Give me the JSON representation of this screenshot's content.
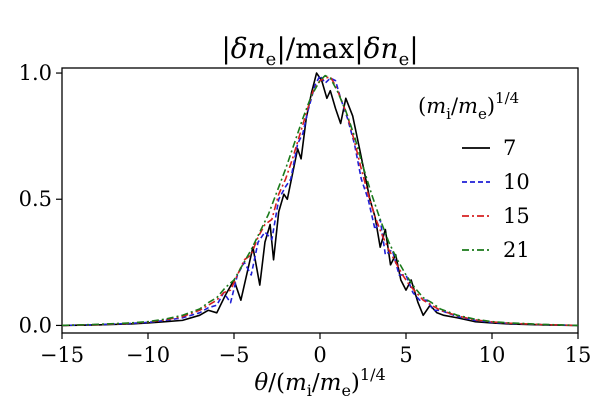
{
  "chart_data": {
    "type": "line",
    "title": "|δn_e|/max|δn_e|",
    "xlabel": "θ/(m_i/m_e)^{1/4}",
    "ylabel": "",
    "xlim": [
      -15,
      15
    ],
    "ylim": [
      -0.03,
      1.02
    ],
    "x_ticks": [
      "−15",
      "−10",
      "−5",
      "0",
      "5",
      "10",
      "15"
    ],
    "y_ticks": [
      "0.0",
      "0.5",
      "1.0"
    ],
    "grid": false,
    "legend": {
      "title": "(m_i/m_e)^{1/4}",
      "placement": "right"
    },
    "series": [
      {
        "name": "7",
        "color": "#000000",
        "dash": "solid",
        "points": [
          [
            -15,
            0.0
          ],
          [
            -13,
            0.002
          ],
          [
            -11,
            0.006
          ],
          [
            -10,
            0.01
          ],
          [
            -9,
            0.015
          ],
          [
            -8,
            0.02
          ],
          [
            -7,
            0.04
          ],
          [
            -6.5,
            0.06
          ],
          [
            -6,
            0.05
          ],
          [
            -5.5,
            0.12
          ],
          [
            -5,
            0.18
          ],
          [
            -4.6,
            0.1
          ],
          [
            -4.2,
            0.22
          ],
          [
            -3.9,
            0.31
          ],
          [
            -3.5,
            0.16
          ],
          [
            -3.2,
            0.33
          ],
          [
            -2.9,
            0.4
          ],
          [
            -2.7,
            0.26
          ],
          [
            -2.4,
            0.45
          ],
          [
            -2.1,
            0.52
          ],
          [
            -1.9,
            0.5
          ],
          [
            -1.6,
            0.6
          ],
          [
            -1.3,
            0.7
          ],
          [
            -1.1,
            0.66
          ],
          [
            -0.8,
            0.82
          ],
          [
            -0.5,
            0.92
          ],
          [
            -0.2,
            1.0
          ],
          [
            0.1,
            0.97
          ],
          [
            0.4,
            0.9
          ],
          [
            0.6,
            0.93
          ],
          [
            0.9,
            0.86
          ],
          [
            1.2,
            0.8
          ],
          [
            1.5,
            0.9
          ],
          [
            1.9,
            0.83
          ],
          [
            2.3,
            0.7
          ],
          [
            2.6,
            0.6
          ],
          [
            2.9,
            0.5
          ],
          [
            3.2,
            0.43
          ],
          [
            3.5,
            0.31
          ],
          [
            3.8,
            0.38
          ],
          [
            4.1,
            0.24
          ],
          [
            4.4,
            0.28
          ],
          [
            4.7,
            0.18
          ],
          [
            5.0,
            0.14
          ],
          [
            5.3,
            0.18
          ],
          [
            5.7,
            0.09
          ],
          [
            6.0,
            0.04
          ],
          [
            6.4,
            0.08
          ],
          [
            6.8,
            0.05
          ],
          [
            7.2,
            0.04
          ],
          [
            8,
            0.03
          ],
          [
            9,
            0.015
          ],
          [
            10,
            0.01
          ],
          [
            11,
            0.006
          ],
          [
            13,
            0.002
          ],
          [
            15,
            0.0
          ]
        ]
      },
      {
        "name": "10",
        "color": "#1f1fd6",
        "dash": "dashed",
        "points": [
          [
            -15,
            0.0
          ],
          [
            -13,
            0.003
          ],
          [
            -11,
            0.008
          ],
          [
            -10,
            0.012
          ],
          [
            -9,
            0.02
          ],
          [
            -8,
            0.03
          ],
          [
            -7,
            0.05
          ],
          [
            -6.5,
            0.07
          ],
          [
            -6,
            0.08
          ],
          [
            -5.6,
            0.13
          ],
          [
            -5.2,
            0.09
          ],
          [
            -4.8,
            0.2
          ],
          [
            -4.4,
            0.25
          ],
          [
            -4.0,
            0.2
          ],
          [
            -3.6,
            0.33
          ],
          [
            -3.2,
            0.37
          ],
          [
            -2.8,
            0.34
          ],
          [
            -2.4,
            0.5
          ],
          [
            -2.0,
            0.55
          ],
          [
            -1.7,
            0.58
          ],
          [
            -1.3,
            0.72
          ],
          [
            -1.0,
            0.76
          ],
          [
            -0.7,
            0.85
          ],
          [
            -0.3,
            0.95
          ],
          [
            0.0,
            0.99
          ],
          [
            0.3,
            0.96
          ],
          [
            0.6,
            0.98
          ],
          [
            0.9,
            0.97
          ],
          [
            1.2,
            0.9
          ],
          [
            1.6,
            0.82
          ],
          [
            2.0,
            0.72
          ],
          [
            2.4,
            0.58
          ],
          [
            2.8,
            0.5
          ],
          [
            3.2,
            0.38
          ],
          [
            3.5,
            0.42
          ],
          [
            3.8,
            0.28
          ],
          [
            4.2,
            0.3
          ],
          [
            4.6,
            0.2
          ],
          [
            5.0,
            0.2
          ],
          [
            5.4,
            0.13
          ],
          [
            5.8,
            0.1
          ],
          [
            6.2,
            0.1
          ],
          [
            6.6,
            0.06
          ],
          [
            7.0,
            0.06
          ],
          [
            8,
            0.035
          ],
          [
            9,
            0.02
          ],
          [
            10,
            0.012
          ],
          [
            11,
            0.008
          ],
          [
            13,
            0.003
          ],
          [
            15,
            0.0
          ]
        ]
      },
      {
        "name": "15",
        "color": "#d62020",
        "dash": "dashdot",
        "points": [
          [
            -15,
            0.0
          ],
          [
            -13,
            0.003
          ],
          [
            -11,
            0.009
          ],
          [
            -10,
            0.014
          ],
          [
            -9,
            0.022
          ],
          [
            -8,
            0.035
          ],
          [
            -7,
            0.06
          ],
          [
            -6.5,
            0.08
          ],
          [
            -6,
            0.1
          ],
          [
            -5.6,
            0.13
          ],
          [
            -5.2,
            0.14
          ],
          [
            -4.8,
            0.2
          ],
          [
            -4.4,
            0.26
          ],
          [
            -4.0,
            0.28
          ],
          [
            -3.6,
            0.35
          ],
          [
            -3.2,
            0.4
          ],
          [
            -2.8,
            0.42
          ],
          [
            -2.4,
            0.52
          ],
          [
            -2.0,
            0.58
          ],
          [
            -1.6,
            0.66
          ],
          [
            -1.2,
            0.75
          ],
          [
            -0.8,
            0.84
          ],
          [
            -0.4,
            0.93
          ],
          [
            0.0,
            0.97
          ],
          [
            0.3,
            0.98
          ],
          [
            0.6,
            0.985
          ],
          [
            0.9,
            0.95
          ],
          [
            1.2,
            0.9
          ],
          [
            1.6,
            0.83
          ],
          [
            2.0,
            0.73
          ],
          [
            2.4,
            0.62
          ],
          [
            2.8,
            0.52
          ],
          [
            3.2,
            0.43
          ],
          [
            3.6,
            0.36
          ],
          [
            4.0,
            0.3
          ],
          [
            4.4,
            0.25
          ],
          [
            4.8,
            0.2
          ],
          [
            5.2,
            0.16
          ],
          [
            5.6,
            0.13
          ],
          [
            6.0,
            0.1
          ],
          [
            6.5,
            0.08
          ],
          [
            7.0,
            0.06
          ],
          [
            8,
            0.038
          ],
          [
            9,
            0.022
          ],
          [
            10,
            0.014
          ],
          [
            11,
            0.009
          ],
          [
            13,
            0.003
          ],
          [
            15,
            0.0
          ]
        ]
      },
      {
        "name": "21",
        "color": "#1a7a1a",
        "dash": "dashdot",
        "points": [
          [
            -15,
            0.0
          ],
          [
            -13,
            0.004
          ],
          [
            -11,
            0.01
          ],
          [
            -10,
            0.015
          ],
          [
            -9,
            0.025
          ],
          [
            -8,
            0.04
          ],
          [
            -7,
            0.065
          ],
          [
            -6.5,
            0.09
          ],
          [
            -6,
            0.11
          ],
          [
            -5.5,
            0.15
          ],
          [
            -5,
            0.18
          ],
          [
            -4.5,
            0.24
          ],
          [
            -4,
            0.3
          ],
          [
            -3.5,
            0.37
          ],
          [
            -3,
            0.44
          ],
          [
            -2.5,
            0.53
          ],
          [
            -2,
            0.62
          ],
          [
            -1.5,
            0.72
          ],
          [
            -1,
            0.82
          ],
          [
            -0.5,
            0.91
          ],
          [
            0.0,
            0.97
          ],
          [
            0.3,
            0.99
          ],
          [
            0.6,
            0.98
          ],
          [
            1.0,
            0.93
          ],
          [
            1.5,
            0.85
          ],
          [
            2.0,
            0.75
          ],
          [
            2.5,
            0.63
          ],
          [
            3.0,
            0.52
          ],
          [
            3.5,
            0.42
          ],
          [
            4.0,
            0.33
          ],
          [
            4.5,
            0.26
          ],
          [
            5.0,
            0.2
          ],
          [
            5.5,
            0.15
          ],
          [
            6.0,
            0.11
          ],
          [
            6.5,
            0.09
          ],
          [
            7.0,
            0.065
          ],
          [
            8,
            0.04
          ],
          [
            9,
            0.025
          ],
          [
            10,
            0.015
          ],
          [
            11,
            0.01
          ],
          [
            13,
            0.004
          ],
          [
            15,
            0.0
          ]
        ]
      }
    ]
  }
}
